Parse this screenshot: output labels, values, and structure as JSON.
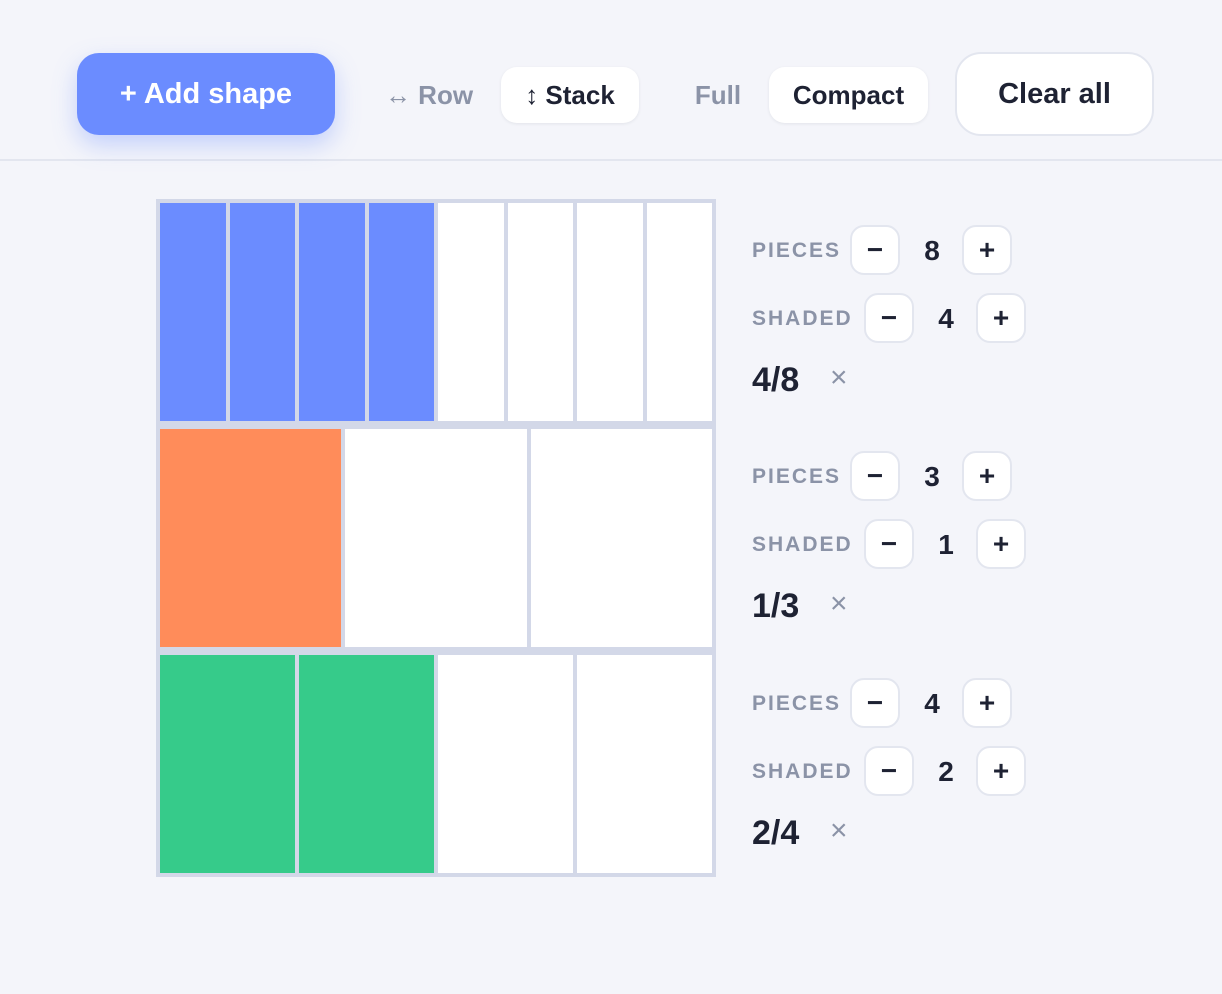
{
  "toolbar": {
    "add_label": "+ Add shape",
    "row_label": "↔ Row",
    "stack_label": "↕ Stack",
    "full_label": "Full",
    "compact_label": "Compact",
    "clear_label": "Clear all"
  },
  "labels": {
    "pieces": "PIECES",
    "shaded": "SHADED",
    "minus": "−",
    "plus": "+",
    "remove": "×"
  },
  "shapes": [
    {
      "pieces": "8",
      "shaded": "4",
      "fraction": "4/8",
      "color": "#6b8cff"
    },
    {
      "pieces": "3",
      "shaded": "1",
      "fraction": "1/3",
      "color": "#ff8c5a"
    },
    {
      "pieces": "4",
      "shaded": "2",
      "fraction": "2/4",
      "color": "#36cb8a"
    }
  ]
}
